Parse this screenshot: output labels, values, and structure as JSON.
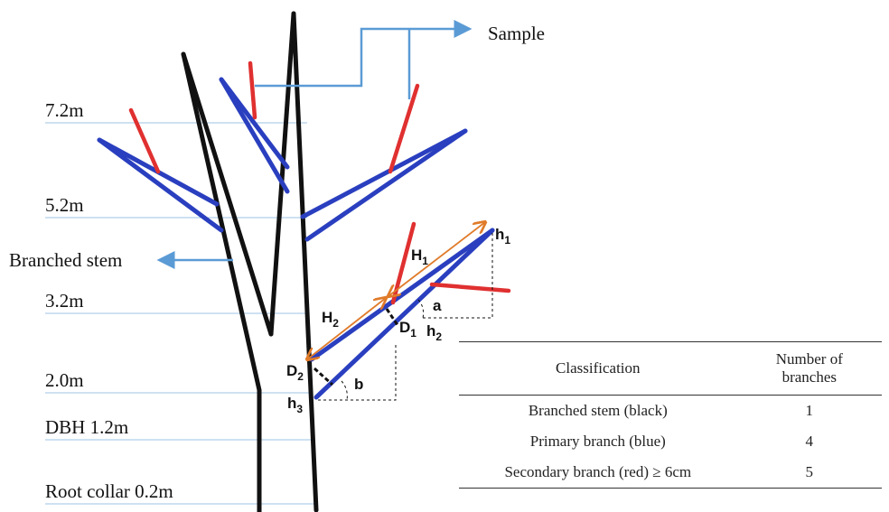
{
  "sample_label": "Sample",
  "heights": [
    "7.2m",
    "5.2m",
    "3.2m",
    "2.0m",
    "DBH 1.2m",
    "Root collar 0.2m"
  ],
  "branched_stem_label": "Branched stem",
  "measurements": [
    {
      "main": "h",
      "sub": "1"
    },
    {
      "main": "H",
      "sub": "1"
    },
    {
      "main": "a",
      "sub": ""
    },
    {
      "main": "D",
      "sub": "1"
    },
    {
      "main": "h",
      "sub": "2"
    },
    {
      "main": "H",
      "sub": "2"
    },
    {
      "main": "D",
      "sub": "2"
    },
    {
      "main": "b",
      "sub": ""
    },
    {
      "main": "h",
      "sub": "3"
    }
  ],
  "table": {
    "headers": [
      "Classification",
      "Number of branches"
    ],
    "rows": [
      [
        "Branched stem (black)",
        1
      ],
      [
        "Primary branch (blue)",
        4
      ],
      [
        "Secondary branch (red) ≥ 6cm",
        5
      ]
    ]
  }
}
